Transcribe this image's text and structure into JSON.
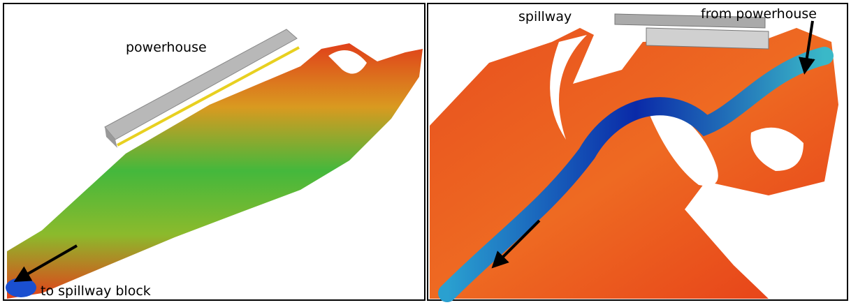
{
  "panels": [
    {
      "labels": [
        "powerhouse",
        "to spillway block"
      ]
    },
    {
      "labels": [
        "spillway",
        "from powerhouse"
      ]
    }
  ]
}
